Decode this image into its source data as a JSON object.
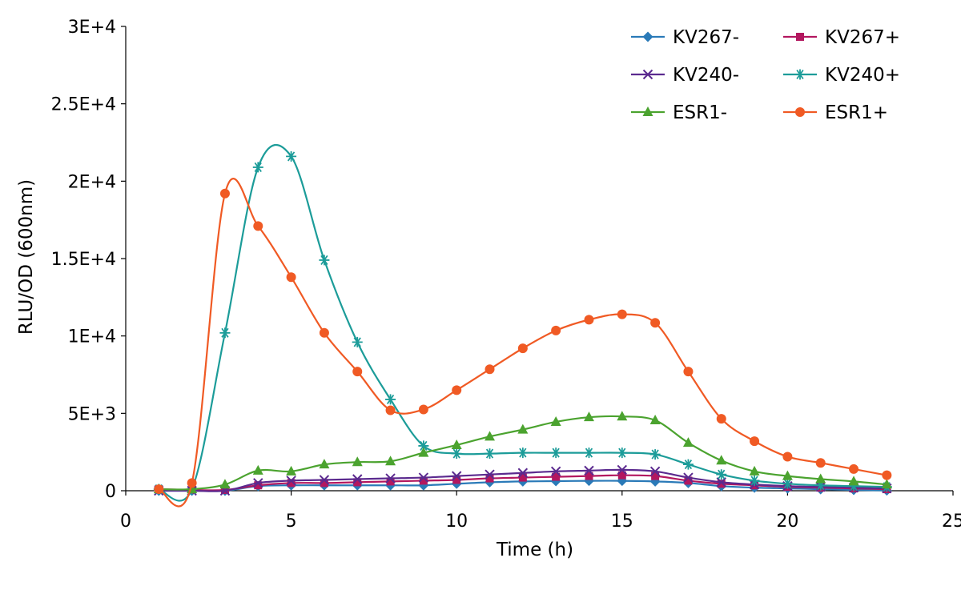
{
  "chart_data": {
    "type": "line",
    "xlabel": "Time (h)",
    "ylabel": "RLU/OD (600nm)",
    "xlim": [
      0,
      25
    ],
    "ylim": [
      0,
      30000
    ],
    "xticks": [
      0,
      5,
      10,
      15,
      20,
      25
    ],
    "xtick_labels": [
      "0",
      "5",
      "10",
      "15",
      "20",
      "25"
    ],
    "yticks": [
      0,
      5000,
      10000,
      15000,
      20000,
      25000,
      30000
    ],
    "ytick_labels": [
      "0",
      "5E+3",
      "1E+4",
      "1.5E+4",
      "2E+4",
      "2.5E+4",
      "3E+4"
    ],
    "grid": false,
    "legend_position": "top-right",
    "x": [
      1,
      2,
      3,
      4,
      5,
      6,
      7,
      8,
      9,
      10,
      11,
      12,
      13,
      14,
      15,
      16,
      17,
      18,
      19,
      20,
      21,
      22,
      23
    ],
    "series": [
      {
        "name": "KV267-",
        "color": "#2a7ab8",
        "marker": "diamond",
        "values": [
          0,
          0,
          0,
          300,
          350,
          350,
          350,
          350,
          350,
          450,
          550,
          600,
          620,
          640,
          640,
          600,
          500,
          300,
          200,
          150,
          100,
          50,
          20
        ]
      },
      {
        "name": "KV267+",
        "color": "#b3175f",
        "marker": "square",
        "values": [
          100,
          50,
          50,
          350,
          500,
          500,
          550,
          600,
          650,
          700,
          800,
          850,
          900,
          950,
          1000,
          950,
          650,
          450,
          350,
          250,
          200,
          150,
          100
        ]
      },
      {
        "name": "KV240-",
        "color": "#5b2a8f",
        "marker": "x",
        "values": [
          0,
          0,
          0,
          500,
          650,
          700,
          750,
          800,
          850,
          950,
          1050,
          1150,
          1250,
          1300,
          1350,
          1250,
          850,
          550,
          400,
          300,
          250,
          200,
          150
        ]
      },
      {
        "name": "KV240+",
        "color": "#1c9c99",
        "marker": "asterisk",
        "values": [
          100,
          100,
          10200,
          20900,
          21600,
          14900,
          9600,
          5900,
          2900,
          2400,
          2400,
          2450,
          2450,
          2450,
          2450,
          2350,
          1700,
          1050,
          650,
          450,
          350,
          300,
          250
        ]
      },
      {
        "name": "ESR1-",
        "color": "#4ba32f",
        "marker": "triangle",
        "values": [
          100,
          100,
          400,
          1300,
          1250,
          1700,
          1850,
          1900,
          2450,
          2950,
          3500,
          3950,
          4450,
          4750,
          4800,
          4550,
          3100,
          1950,
          1250,
          950,
          750,
          600,
          400
        ]
      },
      {
        "name": "ESR1+",
        "color": "#f05a24",
        "marker": "circle",
        "values": [
          100,
          500,
          19200,
          17100,
          13800,
          10200,
          7700,
          5200,
          5250,
          6500,
          7850,
          9200,
          10350,
          11050,
          11400,
          10850,
          7700,
          4650,
          3200,
          2200,
          1800,
          1400,
          1000
        ]
      }
    ]
  }
}
